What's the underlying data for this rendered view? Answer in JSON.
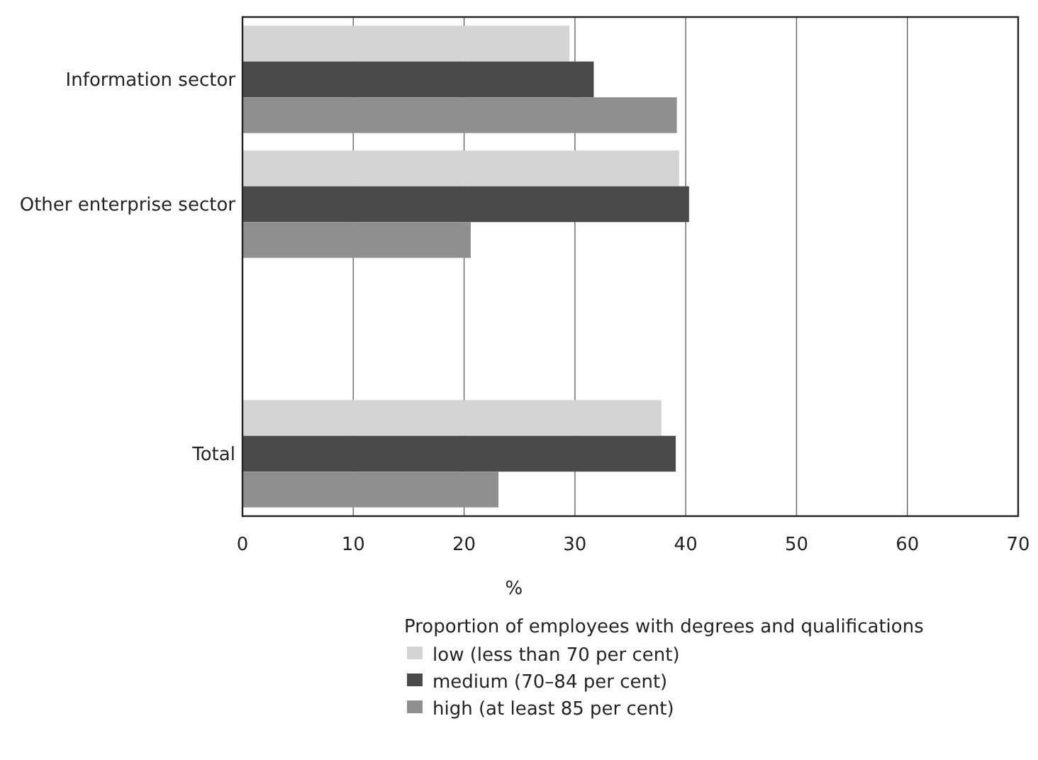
{
  "chart_data": {
    "type": "bar",
    "orientation": "horizontal",
    "xlabel": "%",
    "legend_title": "Proportion of employees with degrees and qualifications",
    "categories": [
      "Information sector",
      "Other enterprise sector",
      null,
      "Total"
    ],
    "series": [
      {
        "name": "low (less than 70 per cent)",
        "color": "#d4d4d4",
        "values": [
          29.5,
          39.4,
          null,
          37.8
        ]
      },
      {
        "name": "medium (70–84 per cent)",
        "color": "#4a4a4a",
        "values": [
          31.7,
          40.3,
          null,
          39.1
        ]
      },
      {
        "name": "high (at least 85 per cent)",
        "color": "#8f8f8f",
        "values": [
          39.2,
          20.6,
          null,
          23.1
        ]
      }
    ],
    "xlim": [
      0,
      70
    ],
    "xticks": [
      0,
      10,
      20,
      30,
      40,
      50,
      60,
      70
    ],
    "grid": "x",
    "legend": "bottom"
  }
}
